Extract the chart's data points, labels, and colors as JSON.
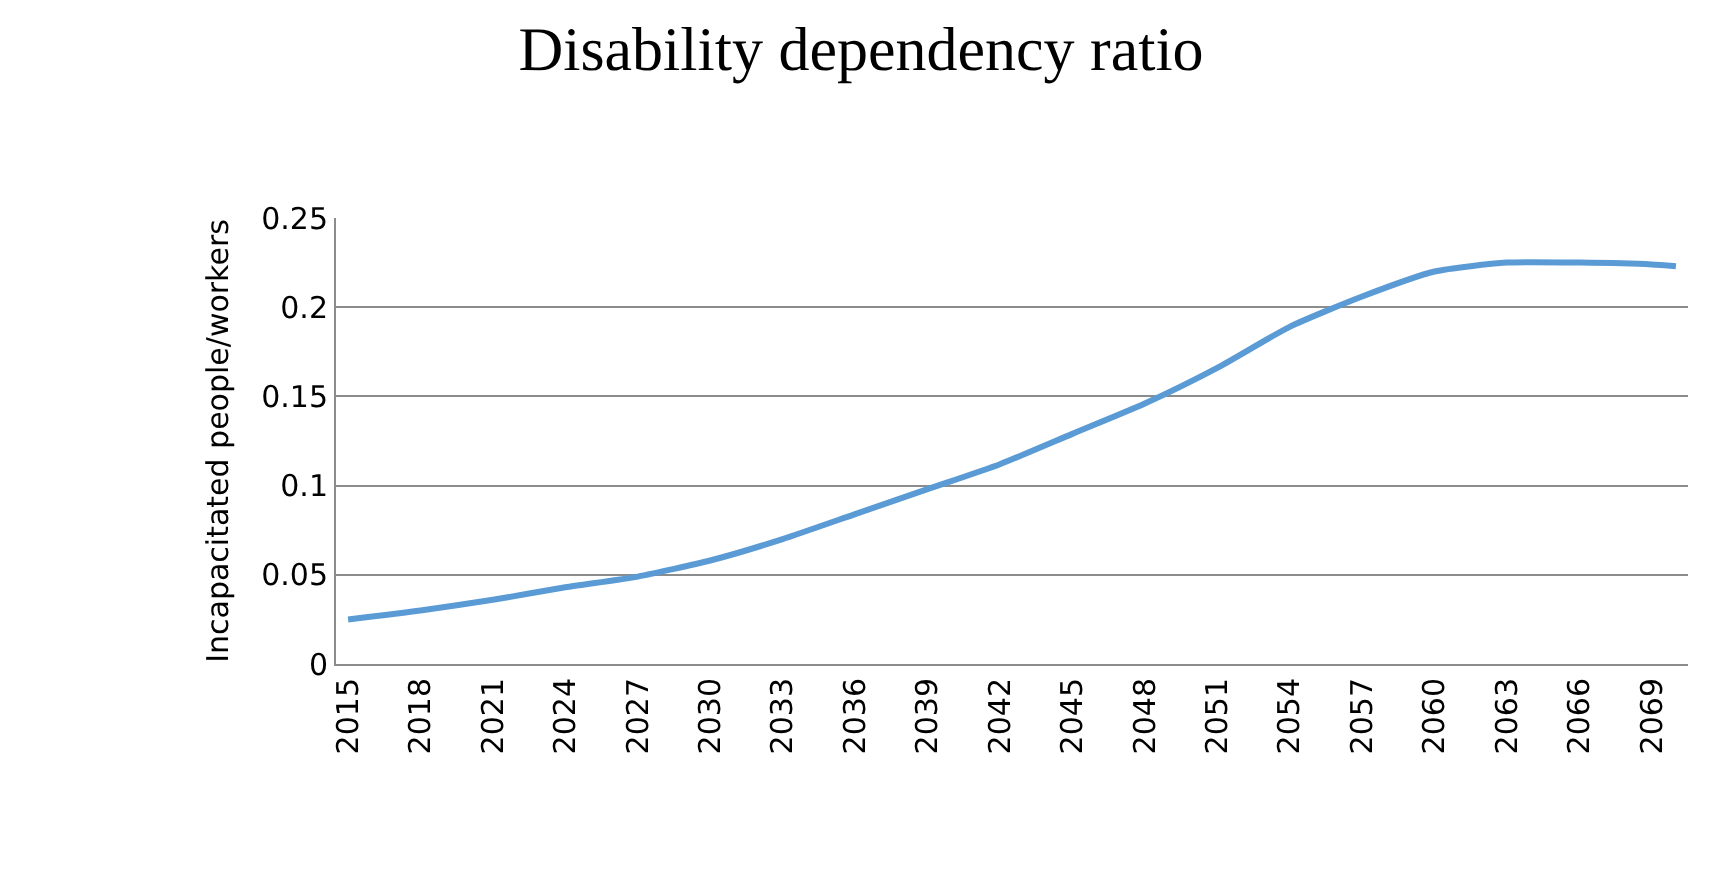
{
  "chart_data": {
    "type": "line",
    "title": "Disability dependency ratio",
    "ylabel": "Incapacitated people/workers",
    "x": [
      2015,
      2018,
      2021,
      2024,
      2027,
      2030,
      2033,
      2036,
      2039,
      2042,
      2045,
      2048,
      2051,
      2054,
      2057,
      2060,
      2063,
      2066,
      2069,
      2070
    ],
    "series": [
      {
        "color": "#5b9bd5",
        "values": [
          0.025,
          0.03,
          0.036,
          0.043,
          0.049,
          0.058,
          0.07,
          0.084,
          0.098,
          0.112,
          0.129,
          0.146,
          0.166,
          0.189,
          0.206,
          0.22,
          0.225,
          0.225,
          0.224,
          0.223
        ]
      }
    ],
    "xlim": [
      2014.5,
      2070.5
    ],
    "xticks": [
      2015,
      2018,
      2021,
      2024,
      2027,
      2030,
      2033,
      2036,
      2039,
      2042,
      2045,
      2048,
      2051,
      2054,
      2057,
      2060,
      2063,
      2066,
      2069
    ],
    "ylim": [
      0,
      0.25
    ],
    "yticks": [
      0,
      0.05,
      0.1,
      0.15,
      0.2,
      0.25
    ],
    "grid": "y",
    "marker": "none",
    "line_style": "solid"
  }
}
